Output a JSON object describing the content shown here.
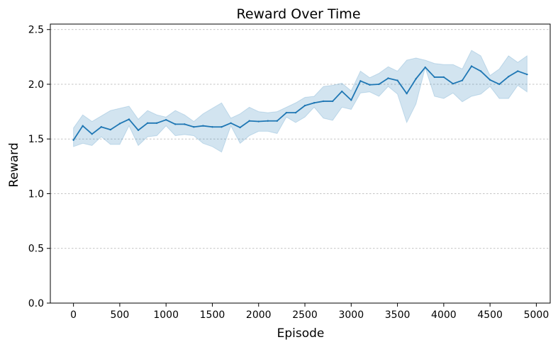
{
  "chart_data": {
    "type": "line",
    "title": "Reward Over Time",
    "xlabel": "Episode",
    "ylabel": "Reward",
    "xlim": [
      -250,
      5150
    ],
    "ylim": [
      0,
      2.55
    ],
    "xticks": [
      0,
      500,
      1000,
      1500,
      2000,
      2500,
      3000,
      3500,
      4000,
      4500,
      5000
    ],
    "yticks": [
      0.0,
      0.5,
      1.0,
      1.5,
      2.0,
      2.5
    ],
    "xtick_labels": [
      "0",
      "500",
      "1000",
      "1500",
      "2000",
      "2500",
      "3000",
      "3500",
      "4000",
      "4500",
      "5000"
    ],
    "ytick_labels": [
      "0.0",
      "0.5",
      "1.0",
      "1.5",
      "2.0",
      "2.5"
    ],
    "grid": "horizontal-dashed",
    "colors": {
      "line": "#1f77b4",
      "band": "#1f77b4",
      "grid": "#b0b0b0"
    },
    "series": [
      {
        "x": [
          0,
          100,
          200,
          300,
          400,
          500,
          600,
          700,
          800,
          900,
          1000,
          1100,
          1200,
          1300,
          1400,
          1500,
          1600,
          1700,
          1800,
          1900,
          2000,
          2100,
          2200,
          2300,
          2400,
          2500,
          2600,
          2700,
          2800,
          2900,
          3000,
          3100,
          3200,
          3300,
          3400,
          3500,
          3600,
          3700,
          3800,
          3900,
          4000,
          4100,
          4200,
          4300,
          4400,
          4500,
          4600,
          4700,
          4800,
          4900
        ],
        "mean": [
          1.49,
          1.62,
          1.545,
          1.61,
          1.585,
          1.64,
          1.68,
          1.58,
          1.645,
          1.645,
          1.675,
          1.635,
          1.635,
          1.61,
          1.62,
          1.61,
          1.61,
          1.645,
          1.605,
          1.665,
          1.66,
          1.665,
          1.665,
          1.74,
          1.74,
          1.805,
          1.83,
          1.845,
          1.845,
          1.935,
          1.855,
          2.03,
          1.995,
          2.0,
          2.055,
          2.035,
          1.915,
          2.05,
          2.155,
          2.065,
          2.065,
          2.005,
          2.035,
          2.165,
          2.12,
          2.04,
          2.0,
          2.07,
          2.12,
          2.09
        ],
        "lower": [
          1.43,
          1.46,
          1.44,
          1.52,
          1.45,
          1.45,
          1.62,
          1.44,
          1.52,
          1.53,
          1.62,
          1.53,
          1.54,
          1.53,
          1.46,
          1.43,
          1.38,
          1.62,
          1.46,
          1.53,
          1.57,
          1.57,
          1.55,
          1.7,
          1.65,
          1.7,
          1.79,
          1.69,
          1.67,
          1.79,
          1.77,
          1.92,
          1.93,
          1.89,
          1.98,
          1.91,
          1.65,
          1.82,
          2.15,
          1.89,
          1.87,
          1.92,
          1.84,
          1.89,
          1.91,
          1.98,
          1.87,
          1.87,
          1.99,
          1.93
        ],
        "upper": [
          1.6,
          1.72,
          1.66,
          1.71,
          1.76,
          1.78,
          1.8,
          1.68,
          1.76,
          1.72,
          1.7,
          1.76,
          1.72,
          1.66,
          1.73,
          1.78,
          1.83,
          1.69,
          1.73,
          1.79,
          1.75,
          1.74,
          1.75,
          1.79,
          1.83,
          1.88,
          1.89,
          1.98,
          1.99,
          2.01,
          1.94,
          2.12,
          2.06,
          2.1,
          2.16,
          2.12,
          2.22,
          2.24,
          2.22,
          2.19,
          2.18,
          2.18,
          2.14,
          2.31,
          2.26,
          2.08,
          2.14,
          2.26,
          2.2,
          2.26
        ]
      }
    ]
  }
}
